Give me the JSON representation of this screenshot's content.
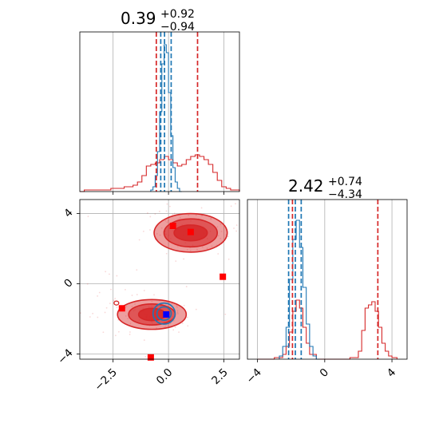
{
  "chart_data": {
    "type": "corner",
    "colors": {
      "red": "#d62728",
      "blue": "#1f77b4",
      "marker_red": "#ff0000",
      "marker_blue": "#0000ff",
      "grid": "#b0b0b0"
    },
    "grid": true,
    "xlabel": "",
    "ylabel": "",
    "panels": [
      {
        "id": "p1",
        "position": "top-left",
        "type": "histogram",
        "title": {
          "value": "0.39",
          "upper": "+0.92",
          "lower": "−0.94"
        },
        "xlim": [
          -4.0,
          3.2
        ],
        "ylim": [
          0,
          1.0
        ],
        "xgrid": [
          -2.5,
          0.0,
          2.5
        ],
        "series": [
          {
            "name": "",
            "color": "#d62728",
            "bin_edges": [
              -4.0,
              -3.8,
              -3.6,
              -3.4,
              -3.2,
              -3.0,
              -2.8,
              -2.6,
              -2.4,
              -2.2,
              -2.0,
              -1.8,
              -1.6,
              -1.4,
              -1.2,
              -1.0,
              -0.8,
              -0.6,
              -0.4,
              -0.2,
              0.0,
              0.2,
              0.4,
              0.6,
              0.8,
              1.0,
              1.2,
              1.4,
              1.6,
              1.8,
              2.0,
              2.2,
              2.4,
              2.6,
              2.8,
              3.0,
              3.2
            ],
            "counts": [
              0.0,
              0.01,
              0.01,
              0.01,
              0.01,
              0.01,
              0.01,
              0.02,
              0.02,
              0.02,
              0.03,
              0.03,
              0.04,
              0.06,
              0.1,
              0.16,
              0.17,
              0.18,
              0.2,
              0.22,
              0.2,
              0.18,
              0.16,
              0.17,
              0.2,
              0.22,
              0.23,
              0.22,
              0.2,
              0.17,
              0.12,
              0.07,
              0.03,
              0.02,
              0.01,
              0.01
            ]
          },
          {
            "name": "",
            "color": "#1f77b4",
            "bin_edges": [
              -0.8,
              -0.7,
              -0.6,
              -0.5,
              -0.4,
              -0.3,
              -0.2,
              -0.1,
              0.0,
              0.1,
              0.2,
              0.3,
              0.4,
              0.5,
              0.6
            ],
            "counts": [
              0.01,
              0.03,
              0.1,
              0.25,
              0.5,
              0.8,
              0.92,
              0.87,
              0.62,
              0.35,
              0.15,
              0.06,
              0.02,
              0.0
            ]
          }
        ],
        "vlines": [
          {
            "x": -0.55,
            "color": "#d62728"
          },
          {
            "x": 1.31,
            "color": "#d62728"
          },
          {
            "x": -0.35,
            "color": "#1f77b4"
          },
          {
            "x": -0.18,
            "color": "#1f77b4"
          },
          {
            "x": 0.12,
            "color": "#1f77b4"
          }
        ]
      },
      {
        "id": "p2",
        "position": "bottom-left",
        "type": "scatter-contour",
        "xlim": [
          -4.0,
          3.2
        ],
        "ylim": [
          -4.3,
          4.8
        ],
        "xticks": [
          -2.5,
          0.0,
          2.5
        ],
        "xticklabels": [
          "−2.5",
          "0.0",
          "2.5"
        ],
        "yticks": [
          -4,
          0,
          4
        ],
        "yticklabels": [
          "−4",
          "0",
          "4"
        ],
        "ygrid": [
          -4,
          0,
          4
        ],
        "xgrid": [
          -2.5,
          0.0,
          2.5
        ],
        "contours": [
          {
            "color": "#d62728",
            "cx": 1.0,
            "cy": 2.9,
            "rx": [
              1.65,
              1.2,
              0.75
            ],
            "ry": [
              1.1,
              0.8,
              0.45
            ],
            "opacity": [
              0.45,
              0.6,
              0.85
            ]
          },
          {
            "color": "#d62728",
            "cx": -0.75,
            "cy": -1.75,
            "rx": [
              1.55,
              1.05,
              0.6
            ],
            "ry": [
              0.85,
              0.6,
              0.35
            ],
            "opacity": [
              0.45,
              0.6,
              0.85
            ]
          },
          {
            "color": "#1f77b4",
            "cx": -0.2,
            "cy": -1.7,
            "rx": [
              0.5,
              0.32
            ],
            "ry": [
              0.6,
              0.38
            ],
            "opacity": [
              0.0,
              0.0
            ]
          }
        ],
        "markers": [
          {
            "x": 0.2,
            "y": 3.3,
            "color": "#ff0000"
          },
          {
            "x": 1.0,
            "y": 2.95,
            "color": "#ff0000"
          },
          {
            "x": 2.45,
            "y": 0.4,
            "color": "#ff0000"
          },
          {
            "x": -2.1,
            "y": -1.4,
            "color": "#ff0000"
          },
          {
            "x": -0.8,
            "y": -4.2,
            "color": "#ff0000"
          },
          {
            "x": -0.1,
            "y": -1.75,
            "color": "#0000ff"
          }
        ],
        "small_contour": {
          "x": -2.35,
          "y": -1.1,
          "color": "#d62728"
        }
      },
      {
        "id": "p3",
        "position": "bottom-right",
        "type": "histogram",
        "title": {
          "value": "2.42",
          "upper": "+0.74",
          "lower": "−4.34"
        },
        "xlim": [
          -4.6,
          4.9
        ],
        "ylim": [
          0,
          1.0
        ],
        "xticks": [
          -4,
          0,
          4
        ],
        "xticklabels": [
          "−4",
          "0",
          "4"
        ],
        "xgrid": [
          -4,
          0,
          4
        ],
        "series": [
          {
            "name": "",
            "color": "#d62728",
            "bin_edges": [
              -4.0,
              -3.5,
              -3.0,
              -2.5,
              -2.3,
              -2.1,
              -1.9,
              -1.7,
              -1.5,
              -1.3,
              -1.1,
              -0.9,
              -0.5,
              0.5,
              1.5,
              2.0,
              2.2,
              2.4,
              2.6,
              2.8,
              3.0,
              3.2,
              3.4,
              3.6,
              3.8,
              4.0,
              4.3
            ],
            "counts": [
              0.0,
              0.0,
              0.01,
              0.03,
              0.08,
              0.17,
              0.3,
              0.37,
              0.32,
              0.2,
              0.1,
              0.03,
              0.0,
              0.0,
              0.01,
              0.05,
              0.18,
              0.32,
              0.34,
              0.36,
              0.3,
              0.2,
              0.1,
              0.05,
              0.02,
              0.01
            ]
          },
          {
            "name": "",
            "color": "#1f77b4",
            "bin_edges": [
              -2.7,
              -2.5,
              -2.3,
              -2.1,
              -1.9,
              -1.7,
              -1.5,
              -1.3,
              -1.1,
              -0.9,
              -0.7,
              -0.5,
              -0.3
            ],
            "counts": [
              0.02,
              0.08,
              0.2,
              0.5,
              0.75,
              0.87,
              0.7,
              0.45,
              0.22,
              0.08,
              0.02,
              0.0
            ]
          }
        ],
        "vlines": [
          {
            "x": -1.92,
            "color": "#d62728"
          },
          {
            "x": 3.16,
            "color": "#d62728"
          },
          {
            "x": -2.15,
            "color": "#1f77b4"
          },
          {
            "x": -1.75,
            "color": "#1f77b4"
          },
          {
            "x": -1.4,
            "color": "#1f77b4"
          }
        ]
      }
    ]
  }
}
